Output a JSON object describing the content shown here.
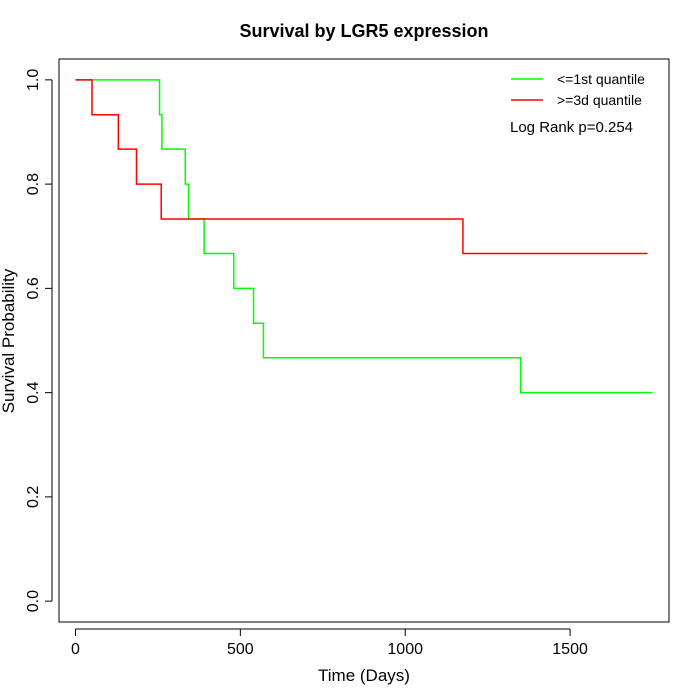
{
  "chart_data": {
    "type": "line",
    "title": "Survival by LGR5 expression",
    "xlabel": "Time (Days)",
    "ylabel": "Survival Probability",
    "xlim": [
      -50,
      1800
    ],
    "ylim": [
      -0.04,
      1.04
    ],
    "x_ticks": [
      0,
      500,
      1000,
      1500
    ],
    "y_ticks": [
      0.0,
      0.2,
      0.4,
      0.6,
      0.8,
      1.0
    ],
    "x_tick_labels": [
      "0",
      "500",
      "1000",
      "1500"
    ],
    "y_tick_labels": [
      "0.0",
      "0.2",
      "0.4",
      "0.6",
      "0.8",
      "1.0"
    ],
    "grid": false,
    "legend_position": "top-right",
    "annotation": "Log Rank p=0.254",
    "series": [
      {
        "name": "<=1st quantile",
        "color": "#00ff00",
        "step_x": [
          0,
          255,
          262,
          333,
          343,
          390,
          480,
          540,
          570,
          1350,
          1750
        ],
        "step_y": [
          1.0,
          0.933,
          0.867,
          0.8,
          0.733,
          0.667,
          0.6,
          0.533,
          0.467,
          0.4,
          0.4
        ]
      },
      {
        "name": ">=3d quantile",
        "color": "#ff0000",
        "step_x": [
          0,
          50,
          130,
          185,
          260,
          1175,
          1735
        ],
        "step_y": [
          1.0,
          0.933,
          0.867,
          0.8,
          0.733,
          0.667,
          0.667
        ]
      }
    ]
  }
}
